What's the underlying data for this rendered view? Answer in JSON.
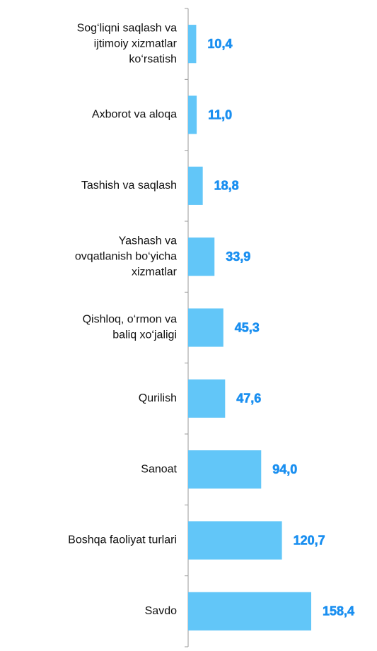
{
  "chart_data": {
    "type": "bar",
    "orientation": "horizontal",
    "categories": [
      [
        "Sog‘liqni saqlash va",
        "ijtimoiy xizmatlar",
        "ko‘rsatish"
      ],
      [
        "Axborot va aloqa"
      ],
      [
        "Tashish va saqlash"
      ],
      [
        "Yashash va",
        "ovqatlanish bo‘yicha",
        "xizmatlar"
      ],
      [
        "Qishloq, o‘rmon va",
        "baliq xo‘jaligi"
      ],
      [
        "Qurilish"
      ],
      [
        "Sanoat"
      ],
      [
        "Boshqa faoliyat turlari"
      ],
      [
        "Savdo"
      ]
    ],
    "values": [
      10.4,
      11.0,
      18.8,
      33.9,
      45.3,
      47.6,
      94.0,
      120.7,
      158.4
    ],
    "value_labels": [
      "10,4",
      "11,0",
      "18,8",
      "33,9",
      "45,3",
      "47,6",
      "94,0",
      "120,7",
      "158,4"
    ],
    "color": "#62c6f8",
    "label_color": "#1a8ff0"
  }
}
